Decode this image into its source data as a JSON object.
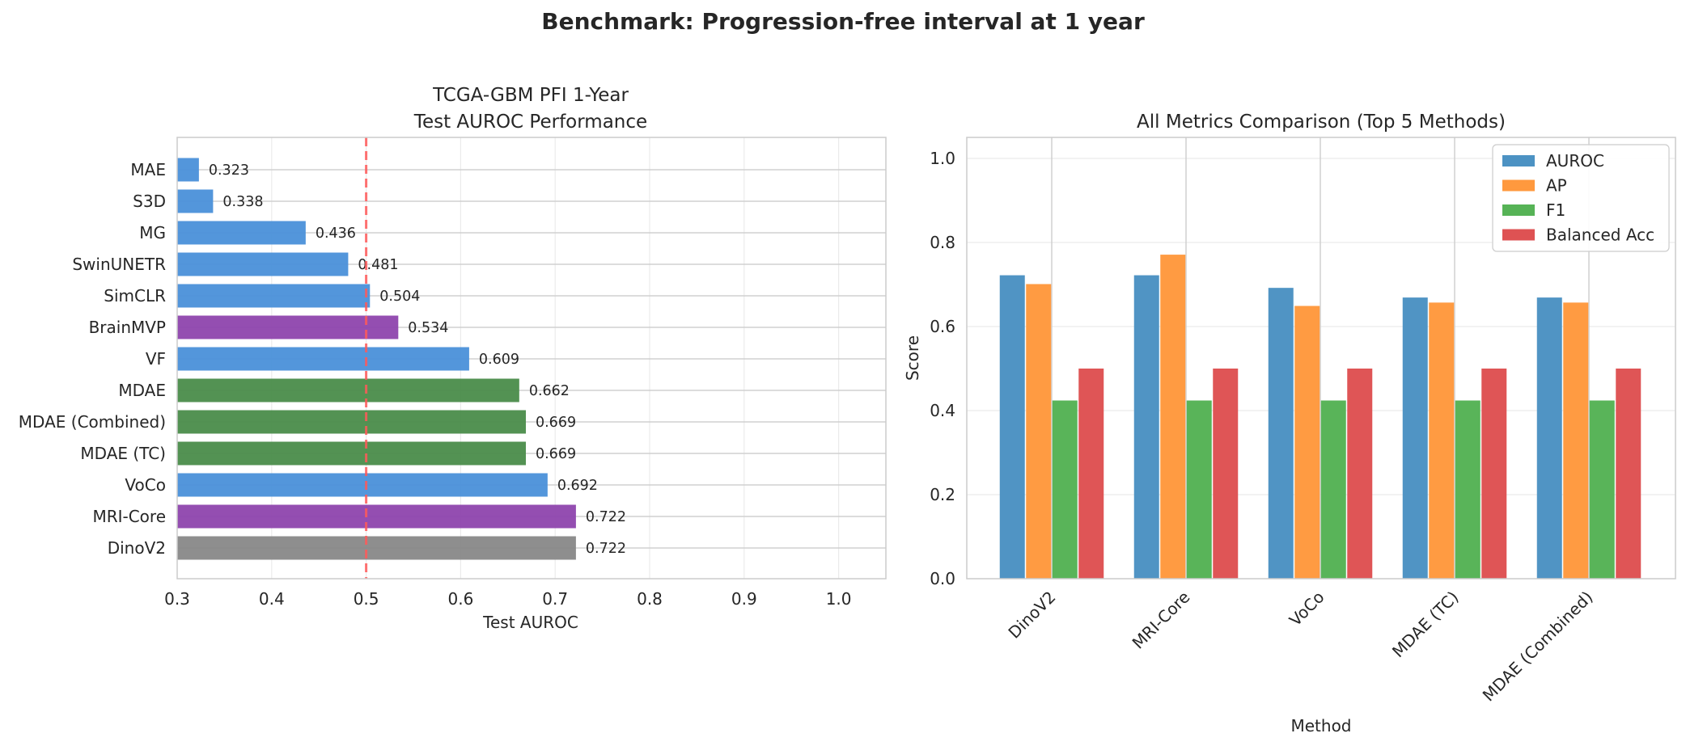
{
  "suptitle": "Benchmark: Progression-free interval at 1 year",
  "colors": {
    "blue": "#4a90d9",
    "purple": "#8e44ad",
    "green": "#4a8c4a",
    "gray": "#888888",
    "reference_line": "#ff5a5a",
    "auroc": "#4c92c3",
    "ap": "#ff993e",
    "f1": "#56b356",
    "balanced_acc": "#de5253"
  },
  "chart_data": [
    {
      "type": "bar",
      "orientation": "horizontal",
      "title_lines": [
        "TCGA-GBM PFI 1-Year",
        "Test AUROC Performance"
      ],
      "xlabel": "Test AUROC",
      "ylabel": "",
      "xlim": [
        0.3,
        1.05
      ],
      "xticks": [
        0.3,
        0.4,
        0.5,
        0.6,
        0.7,
        0.8,
        0.9,
        1.0
      ],
      "xtick_labels": [
        "0.3",
        "0.4",
        "0.5",
        "0.6",
        "0.7",
        "0.8",
        "0.9",
        "1.0"
      ],
      "reference_line": 0.5,
      "grid": true,
      "categories": [
        "MAE",
        "S3D",
        "MG",
        "SwinUNETR",
        "SimCLR",
        "BrainMVP",
        "VF",
        "MDAE",
        "MDAE (Combined)",
        "MDAE (TC)",
        "VoCo",
        "MRI-Core",
        "DinoV2"
      ],
      "values": [
        0.323,
        0.338,
        0.436,
        0.481,
        0.504,
        0.534,
        0.609,
        0.662,
        0.669,
        0.669,
        0.692,
        0.722,
        0.722
      ],
      "value_labels": [
        "0.323",
        "0.338",
        "0.436",
        "0.481",
        "0.504",
        "0.534",
        "0.609",
        "0.662",
        "0.669",
        "0.669",
        "0.692",
        "0.722",
        "0.722"
      ],
      "bar_colors": [
        "blue",
        "blue",
        "blue",
        "blue",
        "blue",
        "purple",
        "blue",
        "green",
        "green",
        "green",
        "blue",
        "purple",
        "gray"
      ]
    },
    {
      "type": "bar",
      "orientation": "vertical",
      "title": "All Metrics Comparison (Top 5 Methods)",
      "xlabel": "Method",
      "ylabel": "Score",
      "ylim": [
        0,
        1.05
      ],
      "yticks": [
        0.0,
        0.2,
        0.4,
        0.6,
        0.8,
        1.0
      ],
      "ytick_labels": [
        "0.0",
        "0.2",
        "0.4",
        "0.6",
        "0.8",
        "1.0"
      ],
      "grid": true,
      "legend_position": "top-right",
      "categories": [
        "DinoV2",
        "MRI-Core",
        "VoCo",
        "MDAE (TC)",
        "MDAE (Combined)"
      ],
      "series": [
        {
          "name": "AUROC",
          "color": "auroc",
          "values": [
            0.722,
            0.722,
            0.692,
            0.669,
            0.669
          ]
        },
        {
          "name": "AP",
          "color": "ap",
          "values": [
            0.701,
            0.771,
            0.649,
            0.657,
            0.657
          ]
        },
        {
          "name": "F1",
          "color": "f1",
          "values": [
            0.424,
            0.424,
            0.424,
            0.424,
            0.424
          ]
        },
        {
          "name": "Balanced Acc",
          "color": "balanced_acc",
          "values": [
            0.5,
            0.5,
            0.5,
            0.5,
            0.5
          ]
        }
      ]
    }
  ]
}
